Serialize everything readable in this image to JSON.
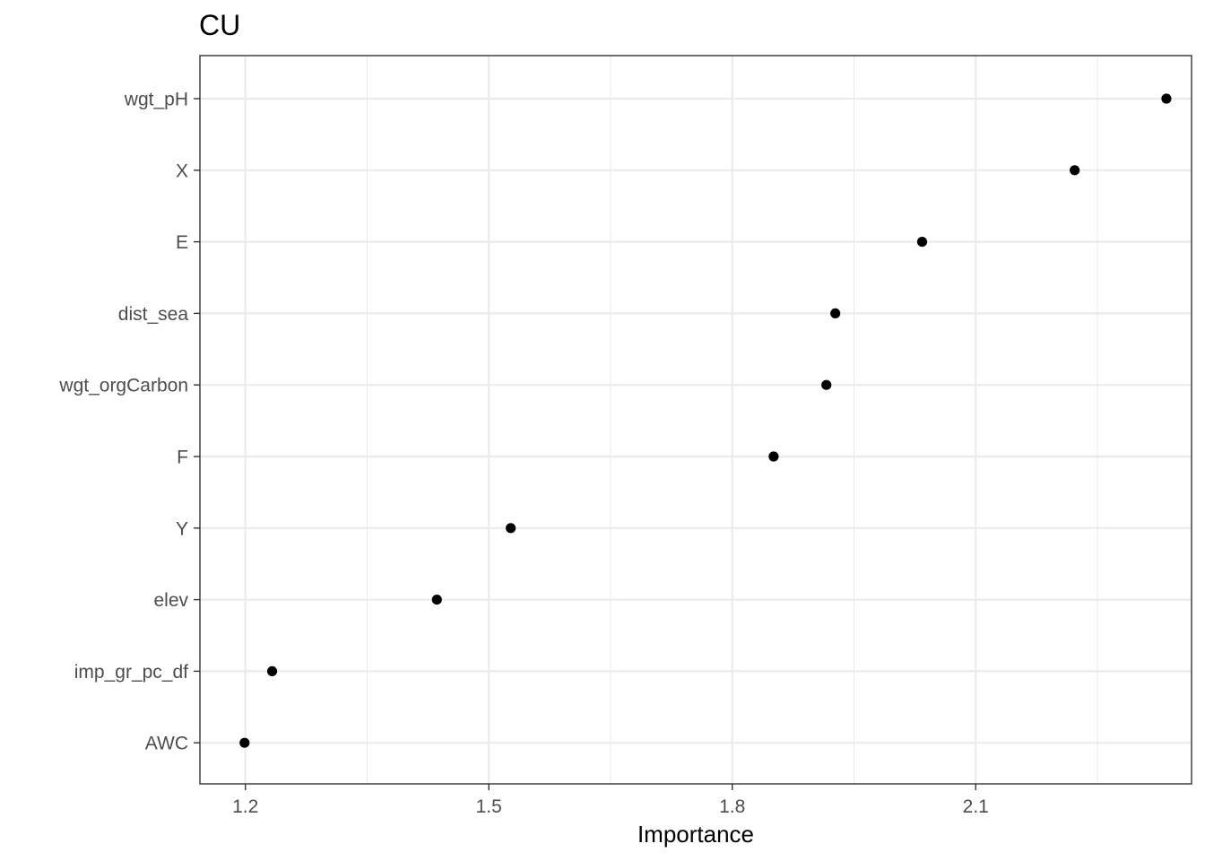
{
  "chart_data": {
    "type": "scatter",
    "title": "CU",
    "xlabel": "Importance",
    "ylabel": "",
    "categories": [
      "wgt_pH",
      "X",
      "E",
      "dist_sea",
      "wgt_orgCarbon",
      "F",
      "Y",
      "elev",
      "imp_gr_pc_df",
      "AWC"
    ],
    "values": [
      2.335,
      2.222,
      2.034,
      1.927,
      1.916,
      1.851,
      1.527,
      1.436,
      1.233,
      1.199
    ],
    "x_ticks": [
      "1.2",
      "1.5",
      "1.8",
      "2.1"
    ],
    "x_tick_values": [
      1.2,
      1.5,
      1.8,
      2.1
    ],
    "xlim": [
      1.144,
      2.366
    ],
    "grid": true,
    "legend": "none",
    "point_color": "#000000",
    "grid_color": "#ebebeb",
    "panel_border_color": "#333333"
  }
}
